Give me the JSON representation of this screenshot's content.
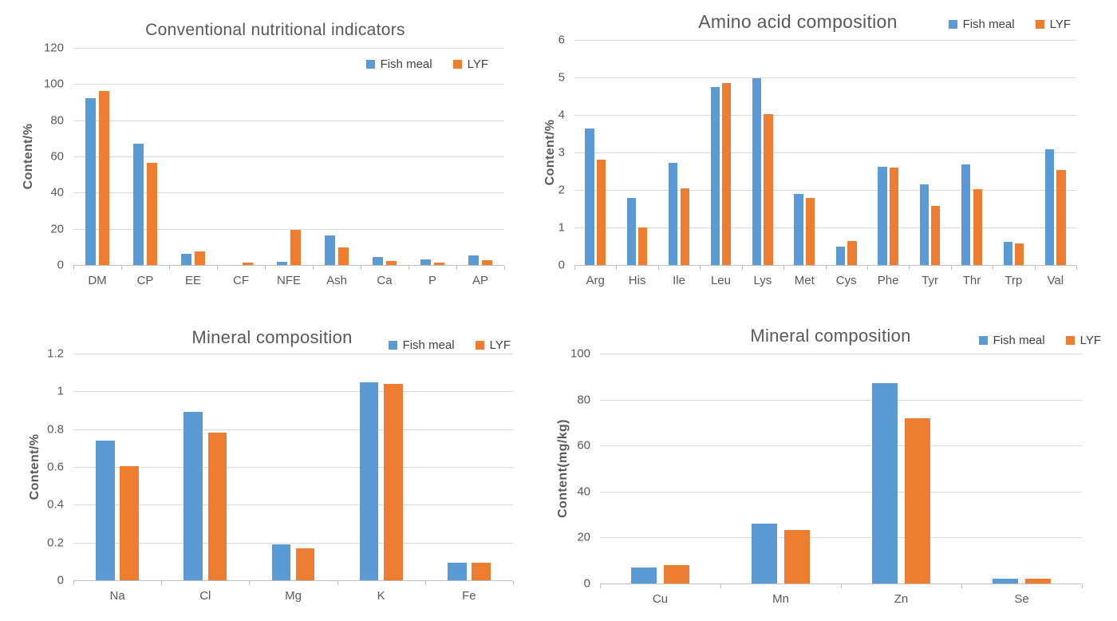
{
  "theme": {
    "background": "#ffffff",
    "text_color": "#595959",
    "gridline_color": "#d9d9d9",
    "axis_line_color": "#bfbfbf",
    "series_blue": "#5B9BD5",
    "series_orange": "#ED7D31"
  },
  "legend": {
    "items": [
      "Fish meal",
      "LYF"
    ]
  },
  "chart_data": [
    {
      "id": "conventional-nutritional-indicators",
      "type": "bar",
      "title": "Conventional nutritional indicators",
      "xlabel": "",
      "ylabel": "Content/%",
      "ylim": [
        0,
        120
      ],
      "ytick_values": [
        0,
        20,
        40,
        60,
        80,
        100,
        120
      ],
      "ytick_labels": [
        "0",
        "20",
        "40",
        "60",
        "80",
        "100",
        "120"
      ],
      "grid": true,
      "legend_position": "inside-top-right",
      "categories": [
        "DM",
        "CP",
        "EE",
        "CF",
        "NFE",
        "Ash",
        "Ca",
        "P",
        "AP"
      ],
      "series": [
        {
          "name": "Fish meal",
          "color": "#5B9BD5",
          "values": [
            92,
            67,
            6.3,
            0,
            1.6,
            16.3,
            4.5,
            3.2,
            5.3
          ]
        },
        {
          "name": "LYF",
          "color": "#ED7D31",
          "values": [
            96,
            56.5,
            7.6,
            1.2,
            19.4,
            9.8,
            2.2,
            1.3,
            2.8
          ]
        }
      ]
    },
    {
      "id": "amino-acid-composition",
      "type": "bar",
      "title": "Amino acid composition",
      "xlabel": "",
      "ylabel": "Content/%",
      "ylim": [
        0,
        6
      ],
      "ytick_values": [
        0,
        1,
        2,
        3,
        4,
        5,
        6
      ],
      "ytick_labels": [
        "0",
        "1",
        "2",
        "3",
        "4",
        "5",
        "6"
      ],
      "grid": true,
      "legend_position": "top-right",
      "categories": [
        "Arg",
        "His",
        "Ile",
        "Leu",
        "Lys",
        "Met",
        "Cys",
        "Phe",
        "Tyr",
        "Thr",
        "Trp",
        "Val"
      ],
      "series": [
        {
          "name": "Fish meal",
          "color": "#5B9BD5",
          "values": [
            3.63,
            1.78,
            2.72,
            4.75,
            4.98,
            1.89,
            0.48,
            2.61,
            2.14,
            2.69,
            0.61,
            3.09
          ]
        },
        {
          "name": "LYF",
          "color": "#ED7D31",
          "values": [
            2.81,
            1.0,
            2.04,
            4.86,
            4.02,
            1.78,
            0.63,
            2.59,
            1.58,
            2.03,
            0.57,
            2.53
          ]
        }
      ]
    },
    {
      "id": "mineral-composition-percent",
      "type": "bar",
      "title": "Mineral composition",
      "xlabel": "",
      "ylabel": "Content/%",
      "ylim": [
        0,
        1.2
      ],
      "ytick_values": [
        0,
        0.2,
        0.4,
        0.6,
        0.8,
        1,
        1.2
      ],
      "ytick_labels": [
        "0",
        "0.2",
        "0.4",
        "0.6",
        "0.8",
        "1",
        "1.2"
      ],
      "grid": true,
      "legend_position": "top-right",
      "categories": [
        "Na",
        "Cl",
        "Mg",
        "K",
        "Fe"
      ],
      "series": [
        {
          "name": "Fish meal",
          "color": "#5B9BD5",
          "values": [
            0.74,
            0.89,
            0.19,
            1.05,
            0.095
          ]
        },
        {
          "name": "LYF",
          "color": "#ED7D31",
          "values": [
            0.605,
            0.78,
            0.17,
            1.04,
            0.095
          ]
        }
      ]
    },
    {
      "id": "mineral-composition-mgkg",
      "type": "bar",
      "title": "Mineral composition",
      "xlabel": "",
      "ylabel": "Content(mg/kg)",
      "ylim": [
        0,
        100
      ],
      "ytick_values": [
        0,
        20,
        40,
        60,
        80,
        100
      ],
      "ytick_labels": [
        "0",
        "20",
        "40",
        "60",
        "80",
        "100"
      ],
      "grid": true,
      "legend_position": "top-right",
      "categories": [
        "Cu",
        "Mn",
        "Zn",
        "Se"
      ],
      "series": [
        {
          "name": "Fish meal",
          "color": "#5B9BD5",
          "values": [
            7.1,
            26,
            87,
            2
          ]
        },
        {
          "name": "LYF",
          "color": "#ED7D31",
          "values": [
            8.1,
            23.2,
            72,
            2
          ]
        }
      ]
    }
  ]
}
